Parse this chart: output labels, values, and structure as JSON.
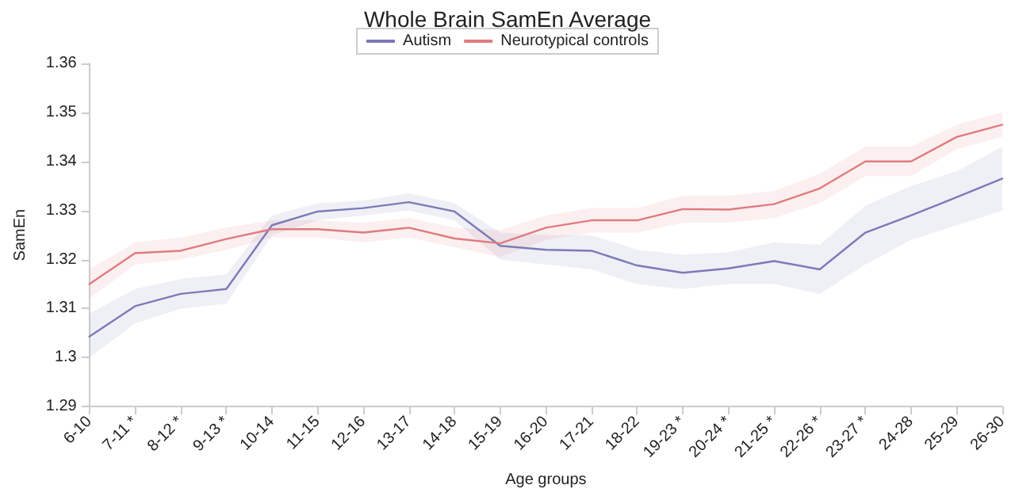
{
  "chart_data": {
    "type": "line",
    "title": "Whole Brain SamEn Average",
    "xlabel": "Age groups",
    "ylabel": "SamEn",
    "categories": [
      "6-10",
      "7-11 *",
      "8-12 *",
      "9-13 *",
      "10-14",
      "11-15",
      "12-16",
      "13-17",
      "14-18",
      "15-19",
      "16-20",
      "17-21",
      "18-22",
      "19-23 *",
      "20-24 *",
      "21-25 *",
      "22-26 *",
      "23-27 *",
      "24-28",
      "25-29",
      "26-30"
    ],
    "series": [
      {
        "name": "Autism",
        "color": "#7b7bb8",
        "values": [
          1.3043,
          1.3105,
          1.313,
          1.314,
          1.327,
          1.3298,
          1.3305,
          1.3317,
          1.3298,
          1.3228,
          1.322,
          1.3218,
          1.3188,
          1.3173,
          1.3182,
          1.3197,
          1.318,
          1.3255,
          1.329,
          1.3327,
          1.3365
        ],
        "lower": [
          1.3,
          1.307,
          1.31,
          1.311,
          1.325,
          1.328,
          1.329,
          1.33,
          1.328,
          1.32,
          1.319,
          1.318,
          1.315,
          1.314,
          1.315,
          1.315,
          1.313,
          1.319,
          1.324,
          1.327,
          1.33
        ],
        "upper": [
          1.309,
          1.314,
          1.316,
          1.317,
          1.329,
          1.3315,
          1.332,
          1.3335,
          1.3315,
          1.3255,
          1.325,
          1.325,
          1.322,
          1.321,
          1.3215,
          1.3235,
          1.323,
          1.331,
          1.335,
          1.338,
          1.343
        ]
      },
      {
        "name": "Neurotypical controls",
        "color": "#e07b7f",
        "values": [
          1.315,
          1.3213,
          1.3218,
          1.3242,
          1.3262,
          1.3262,
          1.3255,
          1.3265,
          1.3243,
          1.3233,
          1.3265,
          1.328,
          1.328,
          1.3303,
          1.3302,
          1.3313,
          1.3345,
          1.34,
          1.34,
          1.345,
          1.3475
        ],
        "lower": [
          1.312,
          1.319,
          1.32,
          1.322,
          1.3245,
          1.3245,
          1.3235,
          1.3245,
          1.3225,
          1.3205,
          1.324,
          1.3255,
          1.3255,
          1.3275,
          1.3275,
          1.3285,
          1.3315,
          1.337,
          1.337,
          1.3425,
          1.345
        ],
        "upper": [
          1.318,
          1.3235,
          1.3245,
          1.3265,
          1.328,
          1.328,
          1.3275,
          1.3285,
          1.3265,
          1.326,
          1.329,
          1.3305,
          1.3305,
          1.333,
          1.333,
          1.334,
          1.3375,
          1.343,
          1.343,
          1.3475,
          1.35
        ]
      }
    ],
    "ylim": [
      1.29,
      1.36
    ],
    "yticks": [
      1.29,
      1.3,
      1.31,
      1.32,
      1.33,
      1.34,
      1.35,
      1.36
    ],
    "grid": false,
    "legend": "top",
    "marker": "none",
    "line_style": "solid"
  }
}
